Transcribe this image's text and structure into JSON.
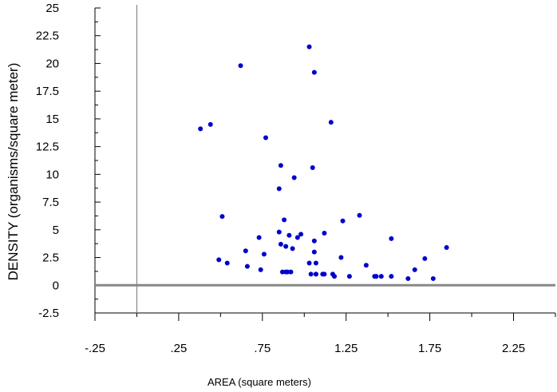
{
  "chart_data": {
    "type": "scatter",
    "xlabel": "AREA (square meters)",
    "ylabel": "DENSITY (organisms/square meter)",
    "xlim": [
      -0.25,
      2.5
    ],
    "ylim": [
      -2.5,
      25
    ],
    "x_ticks": [
      "-.25",
      ".25",
      ".75",
      "1.25",
      "1.75",
      "2.25"
    ],
    "x_tick_values": [
      -0.25,
      0.25,
      0.75,
      1.25,
      1.75,
      2.25
    ],
    "y_ticks": [
      "-2.5",
      "0",
      "2.5",
      "5",
      "7.5",
      "10",
      "12.5",
      "15",
      "17.5",
      "20",
      "22.5",
      "25"
    ],
    "y_tick_values": [
      -2.5,
      0,
      2.5,
      5,
      7.5,
      10,
      12.5,
      15,
      17.5,
      20,
      22.5,
      25
    ],
    "reference_lines": {
      "x": 0,
      "y": 0
    },
    "grid": false,
    "point_color": "#0000cc",
    "series": [
      {
        "x": [
          0.38,
          0.44,
          0.51,
          0.49,
          0.54,
          0.62,
          0.65,
          0.66,
          0.73,
          0.74,
          0.76,
          0.77,
          0.85,
          0.85,
          0.86,
          0.86,
          0.87,
          0.88,
          0.89,
          0.89,
          0.9,
          0.91,
          0.92,
          0.93,
          0.94,
          0.96,
          0.98,
          1.03,
          1.03,
          1.04,
          1.05,
          1.06,
          1.06,
          1.06,
          1.07,
          1.07,
          1.07,
          1.11,
          1.12,
          1.12,
          1.16,
          1.17,
          1.18,
          1.22,
          1.23,
          1.27,
          1.33,
          1.37,
          1.42,
          1.43,
          1.46,
          1.52,
          1.52,
          1.62,
          1.66,
          1.72,
          1.77,
          1.85
        ],
        "y": [
          14.1,
          14.5,
          6.2,
          2.3,
          2.0,
          19.8,
          3.1,
          1.7,
          4.3,
          1.4,
          2.8,
          13.3,
          8.7,
          4.8,
          10.8,
          3.7,
          1.2,
          5.9,
          3.5,
          1.2,
          1.2,
          4.5,
          1.2,
          3.3,
          9.7,
          4.3,
          4.6,
          21.5,
          2.0,
          1.0,
          10.6,
          19.2,
          4.0,
          3.0,
          1.0,
          2.0,
          1.0,
          1.0,
          1.0,
          4.7,
          14.7,
          1.0,
          0.8,
          2.5,
          5.8,
          0.8,
          6.3,
          1.8,
          0.8,
          0.8,
          0.8,
          4.2,
          0.8,
          0.6,
          1.4,
          2.4,
          0.6,
          3.4
        ]
      }
    ]
  }
}
